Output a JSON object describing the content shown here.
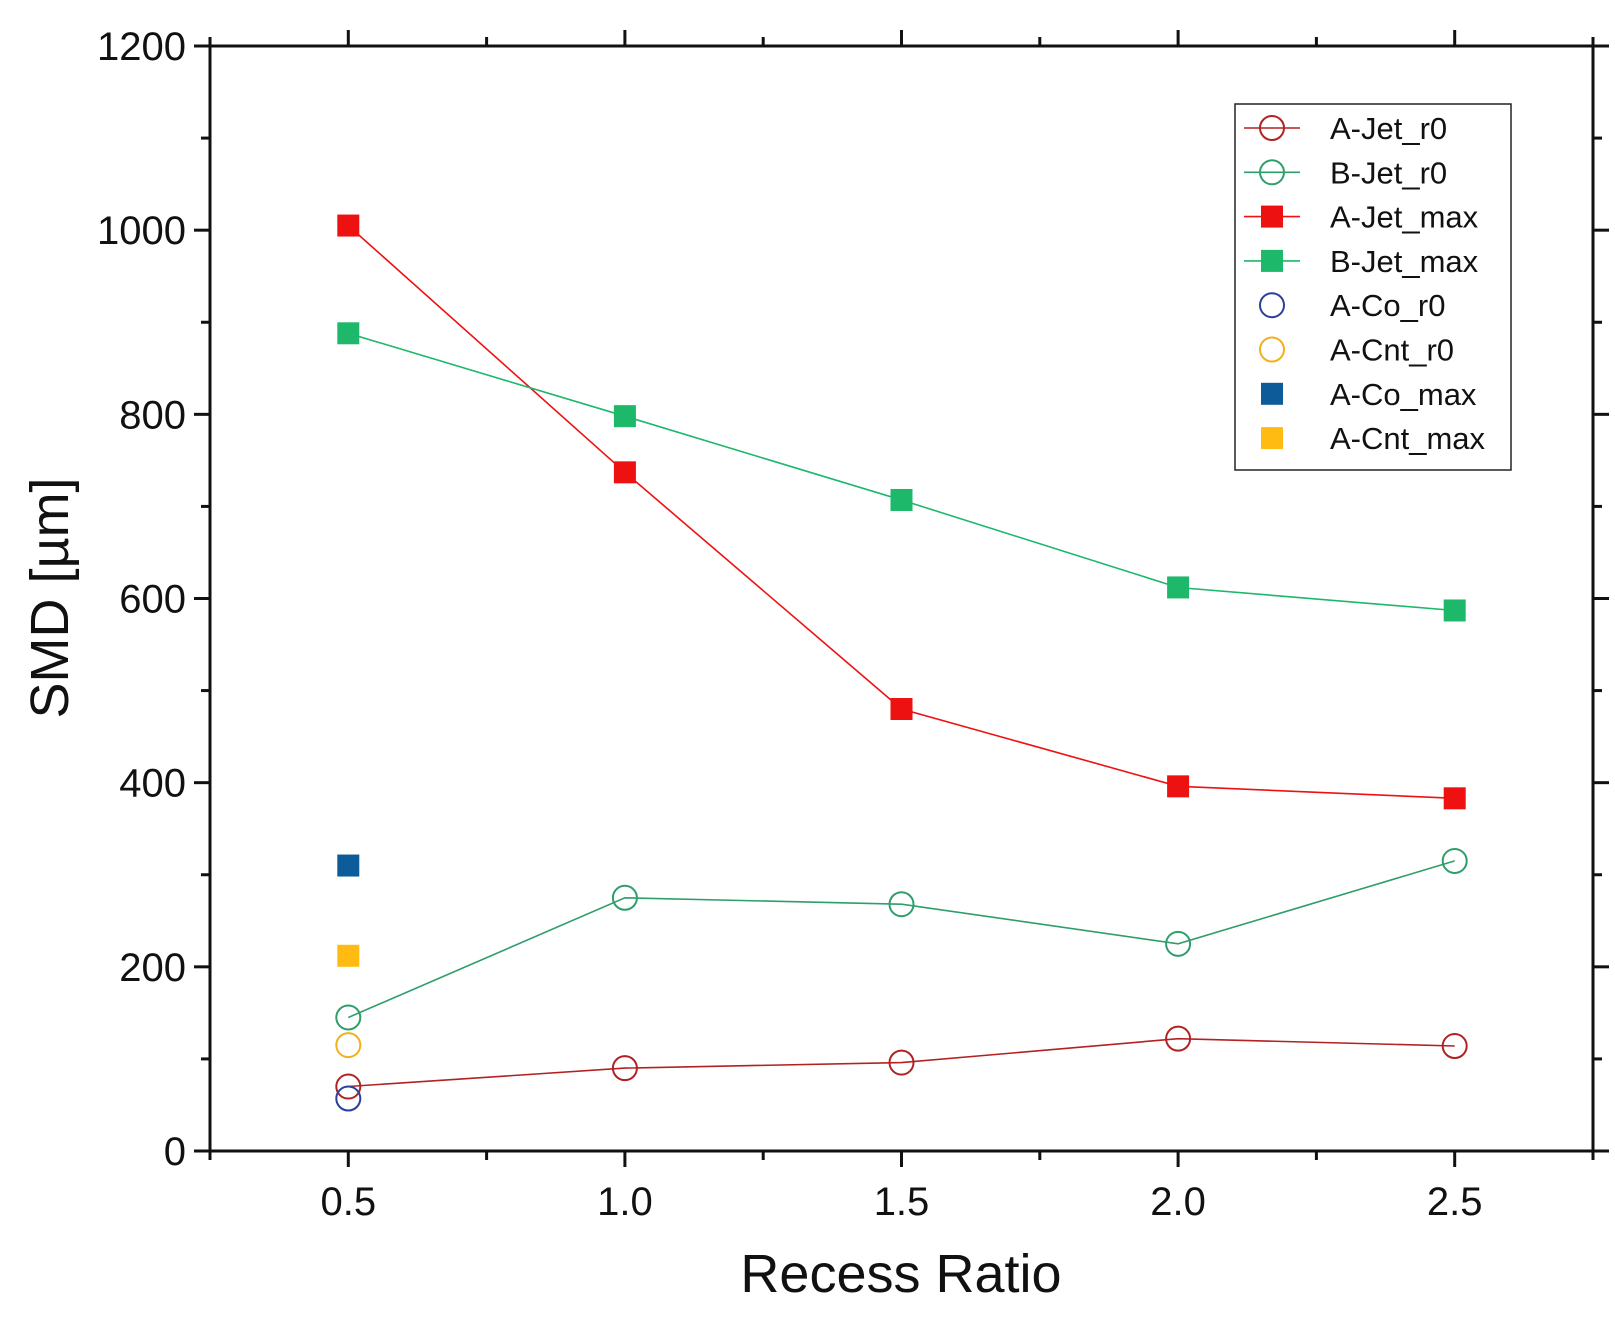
{
  "chart_data": {
    "type": "scatter",
    "xlabel": "Recess Ratio",
    "ylabel": "SMD [µm]",
    "xlim": [
      0.25,
      2.75
    ],
    "ylim": [
      0,
      1200
    ],
    "xticks": [
      "0.5",
      "1.0",
      "1.5",
      "2.0",
      "2.5"
    ],
    "yticks": [
      "0",
      "200",
      "400",
      "600",
      "800",
      "1000",
      "1200"
    ],
    "grid": false,
    "legend_position": "top-right",
    "series": [
      {
        "name": "A-Jet_r0",
        "marker": "circle-open",
        "color": "#b22222",
        "line": true,
        "x": [
          0.5,
          1.0,
          1.5,
          2.0,
          2.5
        ],
        "y": [
          70,
          90,
          96,
          122,
          114
        ]
      },
      {
        "name": "B-Jet_r0",
        "marker": "circle-open",
        "color": "#2e9e6a",
        "line": true,
        "x": [
          0.5,
          1.0,
          1.5,
          2.0,
          2.5
        ],
        "y": [
          145,
          275,
          268,
          225,
          315
        ]
      },
      {
        "name": "A-Jet_max",
        "marker": "square",
        "color": "#ee1111",
        "line": true,
        "x": [
          0.5,
          1.0,
          1.5,
          2.0,
          2.5
        ],
        "y": [
          1005,
          737,
          480,
          396,
          383
        ]
      },
      {
        "name": "B-Jet_max",
        "marker": "square",
        "color": "#1db86a",
        "line": true,
        "x": [
          0.5,
          1.0,
          1.5,
          2.0,
          2.5
        ],
        "y": [
          888,
          798,
          707,
          612,
          587
        ]
      },
      {
        "name": "A-Co_r0",
        "marker": "circle-open",
        "color": "#2a3f9a",
        "line": false,
        "x": [
          0.5
        ],
        "y": [
          57
        ]
      },
      {
        "name": "A-Cnt_r0",
        "marker": "circle-open",
        "color": "#f2b01e",
        "line": false,
        "x": [
          0.5
        ],
        "y": [
          115
        ]
      },
      {
        "name": "A-Co_max",
        "marker": "square",
        "color": "#0d5c99",
        "line": false,
        "x": [
          0.5
        ],
        "y": [
          310
        ]
      },
      {
        "name": "A-Cnt_max",
        "marker": "square",
        "color": "#ffbb11",
        "line": false,
        "x": [
          0.5
        ],
        "y": [
          212
        ]
      }
    ]
  }
}
